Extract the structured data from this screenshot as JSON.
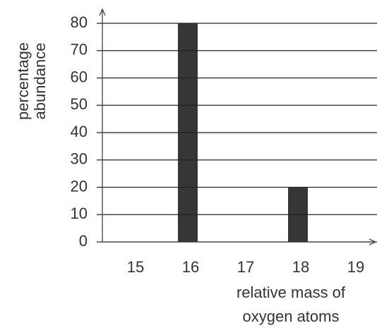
{
  "chart_data": {
    "type": "bar",
    "ylabel": [
      "percentage",
      "abundance"
    ],
    "xlabel": [
      "relative mass of",
      "oxygen atoms"
    ],
    "categories": [
      "15",
      "16",
      "17",
      "18",
      "19"
    ],
    "values": [
      0,
      80,
      0,
      20,
      0
    ],
    "color": "#363636",
    "ylim": [
      0,
      80
    ],
    "yticks": [
      0,
      10,
      20,
      30,
      40,
      50,
      60,
      70,
      80
    ],
    "grid": true
  }
}
